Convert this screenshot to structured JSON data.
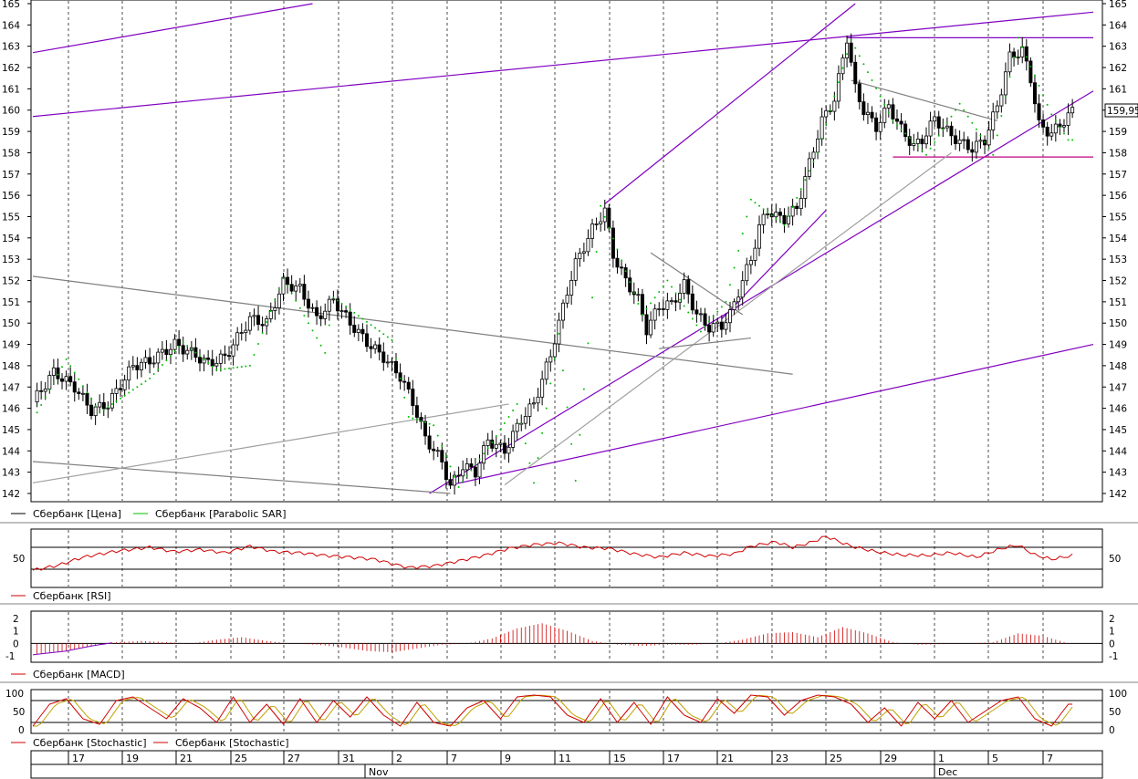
{
  "chart_data": {
    "type": "candlestick",
    "main": {
      "ylim": [
        142,
        165
      ],
      "y_ticks": [
        "142",
        "143",
        "144",
        "145",
        "146",
        "147",
        "148",
        "149",
        "150",
        "151",
        "152",
        "153",
        "154",
        "155",
        "156",
        "157",
        "158",
        "159",
        "160",
        "161",
        "162",
        "163",
        "164",
        "165"
      ],
      "last_price_label": "159,95",
      "last_price": 159.95,
      "legend": [
        {
          "name": "Сбербанк [Цена]",
          "color": "#000000"
        },
        {
          "name": "Сбербанк [Parabolic SAR]",
          "color": "#00c000"
        }
      ],
      "price_path": [
        [
          0,
          146.3
        ],
        [
          5,
          147.7
        ],
        [
          10,
          147.0
        ],
        [
          14,
          145.9
        ],
        [
          18,
          146.2
        ],
        [
          24,
          148.0
        ],
        [
          28,
          148.2
        ],
        [
          34,
          149.0
        ],
        [
          38,
          148.6
        ],
        [
          42,
          148.1
        ],
        [
          46,
          148.4
        ],
        [
          52,
          150.2
        ],
        [
          56,
          150.0
        ],
        [
          60,
          151.9
        ],
        [
          64,
          151.6
        ],
        [
          68,
          150.2
        ],
        [
          72,
          151.1
        ],
        [
          76,
          150.0
        ],
        [
          80,
          149.1
        ],
        [
          84,
          148.4
        ],
        [
          88,
          147.5
        ],
        [
          91,
          146.3
        ],
        [
          94,
          144.6
        ],
        [
          98,
          143.5
        ],
        [
          100,
          142.3
        ],
        [
          103,
          143.3
        ],
        [
          106,
          143.0
        ],
        [
          109,
          144.5
        ],
        [
          113,
          144.0
        ],
        [
          117,
          145.5
        ],
        [
          120,
          146.2
        ],
        [
          124,
          148.5
        ],
        [
          126,
          150.0
        ],
        [
          128,
          151.5
        ],
        [
          130,
          152.8
        ],
        [
          134,
          154.4
        ],
        [
          137,
          155.3
        ],
        [
          139,
          153.2
        ],
        [
          142,
          152.0
        ],
        [
          145,
          151.1
        ],
        [
          147,
          149.7
        ],
        [
          150,
          150.8
        ],
        [
          153,
          150.9
        ],
        [
          156,
          151.8
        ],
        [
          159,
          150.4
        ],
        [
          162,
          149.8
        ],
        [
          165,
          149.9
        ],
        [
          167,
          150.4
        ],
        [
          170,
          152.0
        ],
        [
          172,
          153.0
        ],
        [
          174,
          154.5
        ],
        [
          176,
          155.3
        ],
        [
          178,
          155.0
        ],
        [
          180,
          154.9
        ],
        [
          183,
          155.4
        ],
        [
          186,
          157.5
        ],
        [
          189,
          159.5
        ],
        [
          192,
          160.5
        ],
        [
          195,
          163.4
        ],
        [
          197,
          161.0
        ],
        [
          199,
          160.0
        ],
        [
          202,
          159.2
        ],
        [
          205,
          160.2
        ],
        [
          208,
          159.1
        ],
        [
          211,
          158.3
        ],
        [
          213,
          158.6
        ],
        [
          216,
          159.6
        ],
        [
          219,
          159.0
        ],
        [
          222,
          158.5
        ],
        [
          225,
          158.2
        ],
        [
          228,
          158.6
        ],
        [
          231,
          160.2
        ],
        [
          234,
          162.5
        ],
        [
          237,
          162.8
        ],
        [
          239,
          161.5
        ],
        [
          241,
          159.3
        ],
        [
          244,
          158.9
        ],
        [
          247,
          159.5
        ],
        [
          249,
          159.95
        ]
      ],
      "sar_path": [
        [
          1,
          145.8
        ],
        [
          8,
          148.3
        ],
        [
          16,
          145.8
        ],
        [
          28,
          147.4
        ],
        [
          36,
          149.1
        ],
        [
          44,
          147.8
        ],
        [
          52,
          148.0
        ],
        [
          60,
          152.1
        ],
        [
          70,
          148.6
        ],
        [
          72,
          151.2
        ],
        [
          86,
          149.2
        ],
        [
          90,
          145.6
        ],
        [
          96,
          145.2
        ],
        [
          102,
          142.3
        ],
        [
          110,
          144.4
        ],
        [
          116,
          146.2
        ],
        [
          120,
          142.5
        ],
        [
          126,
          149.5
        ],
        [
          130,
          142.6
        ],
        [
          136,
          155.5
        ],
        [
          146,
          150.4
        ],
        [
          152,
          152.0
        ],
        [
          160,
          149.6
        ],
        [
          166,
          151.0
        ],
        [
          172,
          155.8
        ],
        [
          180,
          154.6
        ],
        [
          188,
          158.0
        ],
        [
          196,
          163.3
        ],
        [
          206,
          159.5
        ],
        [
          214,
          157.9
        ],
        [
          222,
          160.3
        ],
        [
          230,
          157.9
        ],
        [
          236,
          163.4
        ],
        [
          244,
          159.8
        ],
        [
          248,
          158.6
        ]
      ],
      "trendlines": [
        {
          "color": "#8000c0",
          "from": [
            0,
            162.7
          ],
          "to": [
            67,
            165.0
          ]
        },
        {
          "color": "#8000c0",
          "from": [
            0,
            159.7
          ],
          "to": [
            254,
            164.6
          ]
        },
        {
          "color": "#8000c0",
          "from": [
            137,
            155.6
          ],
          "to": [
            197,
            165.0
          ]
        },
        {
          "color": "#8000c0",
          "from": [
            195,
            163.4
          ],
          "to": [
            254,
            163.4
          ]
        },
        {
          "color": "#8000c0",
          "from": [
            95,
            142.0
          ],
          "to": [
            254,
            160.9
          ]
        },
        {
          "color": "#8000c0",
          "from": [
            100,
            142.4
          ],
          "to": [
            254,
            149.0
          ]
        },
        {
          "color": "#8000c0",
          "from": [
            165,
            150.2
          ],
          "to": [
            190,
            155.3
          ]
        },
        {
          "color": "#c00080",
          "from": [
            206,
            157.8
          ],
          "to": [
            254,
            157.8
          ]
        },
        {
          "color": "#808080",
          "from": [
            0,
            152.2
          ],
          "to": [
            182,
            147.6
          ]
        },
        {
          "color": "#808080",
          "from": [
            0,
            143.5
          ],
          "to": [
            100,
            142.0
          ]
        },
        {
          "color": "#a0a0a0",
          "from": [
            0,
            142.5
          ],
          "to": [
            114,
            146.2
          ]
        },
        {
          "color": "#a0a0a0",
          "from": [
            113,
            142.4
          ],
          "to": [
            220,
            158.0
          ]
        },
        {
          "color": "#808080",
          "from": [
            148,
            153.3
          ],
          "to": [
            170,
            150.4
          ]
        },
        {
          "color": "#808080",
          "from": [
            150,
            148.8
          ],
          "to": [
            172,
            149.3
          ]
        },
        {
          "color": "#808080",
          "from": [
            196,
            161.4
          ],
          "to": [
            231,
            159.5
          ]
        }
      ]
    },
    "rsi": {
      "ylim": [
        0,
        100
      ],
      "y_ticks": [
        "50"
      ],
      "levels": [
        30,
        70
      ],
      "legend": [
        {
          "name": "Сбербанк [RSI]",
          "color": "#d00000"
        }
      ],
      "path": [
        [
          0,
          28
        ],
        [
          6,
          37
        ],
        [
          12,
          52
        ],
        [
          20,
          63
        ],
        [
          28,
          70
        ],
        [
          34,
          62
        ],
        [
          40,
          66
        ],
        [
          46,
          60
        ],
        [
          52,
          72
        ],
        [
          58,
          62
        ],
        [
          64,
          60
        ],
        [
          70,
          55
        ],
        [
          76,
          52
        ],
        [
          82,
          48
        ],
        [
          86,
          40
        ],
        [
          90,
          33
        ],
        [
          96,
          36
        ],
        [
          102,
          45
        ],
        [
          108,
          55
        ],
        [
          114,
          68
        ],
        [
          120,
          75
        ],
        [
          126,
          78
        ],
        [
          132,
          70
        ],
        [
          138,
          68
        ],
        [
          144,
          58
        ],
        [
          150,
          52
        ],
        [
          156,
          60
        ],
        [
          162,
          54
        ],
        [
          168,
          58
        ],
        [
          172,
          72
        ],
        [
          178,
          80
        ],
        [
          182,
          70
        ],
        [
          186,
          78
        ],
        [
          190,
          90
        ],
        [
          196,
          72
        ],
        [
          202,
          62
        ],
        [
          208,
          56
        ],
        [
          214,
          55
        ],
        [
          220,
          60
        ],
        [
          226,
          52
        ],
        [
          232,
          68
        ],
        [
          236,
          74
        ],
        [
          240,
          56
        ],
        [
          244,
          48
        ],
        [
          249,
          55
        ]
      ]
    },
    "macd": {
      "ylim": [
        -1.2,
        2.2
      ],
      "y_ticks": [
        "-1",
        "0",
        "1",
        "2"
      ],
      "legend": [
        {
          "name": "Сбербанк [MACD]",
          "color": "#d00000"
        }
      ],
      "path": [
        [
          0,
          -0.9
        ],
        [
          8,
          -0.6
        ],
        [
          14,
          -0.2
        ],
        [
          20,
          0.1
        ],
        [
          26,
          0.2
        ],
        [
          32,
          0.1
        ],
        [
          38,
          0.0
        ],
        [
          44,
          0.3
        ],
        [
          50,
          0.5
        ],
        [
          56,
          0.2
        ],
        [
          62,
          0.0
        ],
        [
          68,
          -0.1
        ],
        [
          74,
          -0.3
        ],
        [
          80,
          -0.6
        ],
        [
          86,
          -0.7
        ],
        [
          92,
          -0.4
        ],
        [
          98,
          -0.1
        ],
        [
          104,
          0.0
        ],
        [
          110,
          0.4
        ],
        [
          116,
          1.2
        ],
        [
          122,
          1.6
        ],
        [
          128,
          1.0
        ],
        [
          134,
          0.2
        ],
        [
          140,
          -0.1
        ],
        [
          146,
          -0.2
        ],
        [
          152,
          -0.1
        ],
        [
          158,
          -0.1
        ],
        [
          164,
          0.0
        ],
        [
          170,
          0.3
        ],
        [
          176,
          0.8
        ],
        [
          182,
          0.9
        ],
        [
          188,
          0.5
        ],
        [
          194,
          1.3
        ],
        [
          200,
          0.8
        ],
        [
          206,
          0.1
        ],
        [
          212,
          -0.1
        ],
        [
          218,
          -0.05
        ],
        [
          224,
          0.0
        ],
        [
          230,
          0.1
        ],
        [
          236,
          0.8
        ],
        [
          242,
          0.6
        ],
        [
          248,
          0.0
        ]
      ]
    },
    "stochastic": {
      "ylim": [
        0,
        100
      ],
      "y_ticks": [
        "0",
        "50",
        "100"
      ],
      "levels": [
        20,
        80
      ],
      "legend": [
        {
          "name": "Сбербанк [Stochastic]",
          "color": "#d00000"
        },
        {
          "name": "Сбербанк [Stochastic]",
          "color": "#d00000"
        }
      ],
      "k_path": [
        [
          0,
          10
        ],
        [
          4,
          70
        ],
        [
          8,
          85
        ],
        [
          12,
          30
        ],
        [
          16,
          15
        ],
        [
          20,
          80
        ],
        [
          24,
          90
        ],
        [
          28,
          60
        ],
        [
          32,
          30
        ],
        [
          36,
          85
        ],
        [
          40,
          60
        ],
        [
          44,
          20
        ],
        [
          48,
          90
        ],
        [
          52,
          20
        ],
        [
          56,
          70
        ],
        [
          60,
          15
        ],
        [
          64,
          85
        ],
        [
          68,
          20
        ],
        [
          72,
          80
        ],
        [
          76,
          35
        ],
        [
          80,
          90
        ],
        [
          84,
          40
        ],
        [
          88,
          10
        ],
        [
          92,
          75
        ],
        [
          96,
          20
        ],
        [
          100,
          10
        ],
        [
          104,
          60
        ],
        [
          108,
          80
        ],
        [
          112,
          30
        ],
        [
          116,
          90
        ],
        [
          120,
          95
        ],
        [
          124,
          90
        ],
        [
          128,
          40
        ],
        [
          132,
          20
        ],
        [
          136,
          85
        ],
        [
          140,
          20
        ],
        [
          144,
          75
        ],
        [
          148,
          15
        ],
        [
          152,
          90
        ],
        [
          156,
          40
        ],
        [
          160,
          20
        ],
        [
          164,
          85
        ],
        [
          168,
          45
        ],
        [
          172,
          95
        ],
        [
          176,
          90
        ],
        [
          180,
          40
        ],
        [
          184,
          80
        ],
        [
          188,
          95
        ],
        [
          192,
          90
        ],
        [
          196,
          70
        ],
        [
          200,
          20
        ],
        [
          204,
          60
        ],
        [
          208,
          10
        ],
        [
          212,
          75
        ],
        [
          216,
          30
        ],
        [
          220,
          80
        ],
        [
          224,
          20
        ],
        [
          228,
          50
        ],
        [
          232,
          80
        ],
        [
          236,
          90
        ],
        [
          240,
          30
        ],
        [
          244,
          10
        ],
        [
          248,
          70
        ]
      ]
    },
    "x_axis": {
      "day_labels": [
        "17",
        "19",
        "21",
        "25",
        "27",
        "31",
        "2",
        "7",
        "9",
        "11",
        "15",
        "17",
        "21",
        "23",
        "25",
        "29",
        "1",
        "5",
        "7"
      ],
      "month_labels": [
        "Nov",
        "Dec"
      ]
    }
  }
}
